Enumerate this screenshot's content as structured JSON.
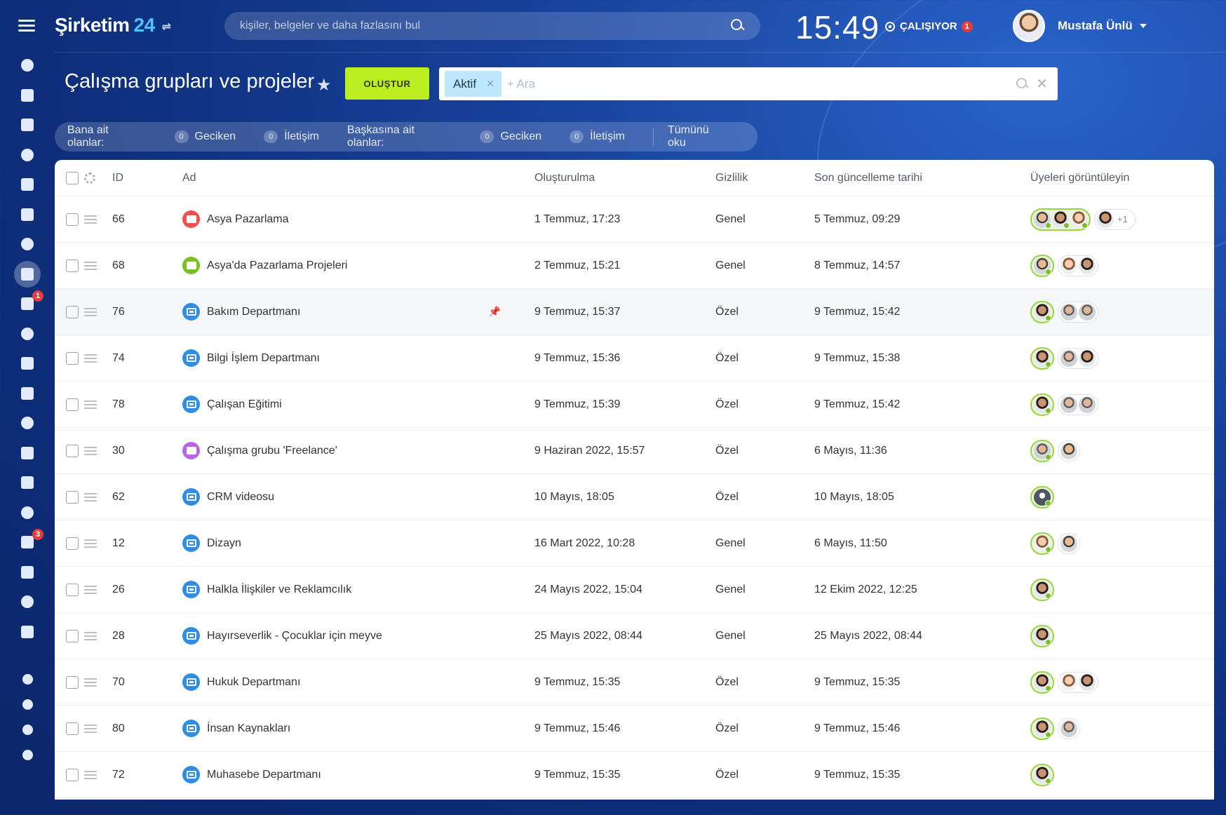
{
  "brand": {
    "name": "Şirketim",
    "number": "24"
  },
  "top_search": {
    "placeholder": "kişiler, belgeler ve daha fazlasını bul"
  },
  "clock": "15:49",
  "status": {
    "label": "ÇALIŞIYOR",
    "count": "1"
  },
  "user": {
    "name": "Mustafa Ünlü"
  },
  "sidebar": {
    "items": [
      {
        "icon": "feed-icon"
      },
      {
        "icon": "messenger-icon"
      },
      {
        "icon": "chat-icon"
      },
      {
        "icon": "calendar-icon"
      },
      {
        "icon": "document-icon"
      },
      {
        "icon": "drive-icon"
      },
      {
        "icon": "mail-icon"
      },
      {
        "icon": "groups-icon",
        "active": true
      },
      {
        "icon": "tasks-icon",
        "badge": "1"
      },
      {
        "icon": "crm-icon"
      },
      {
        "icon": "store-icon"
      },
      {
        "icon": "target-icon"
      },
      {
        "icon": "cart-icon"
      },
      {
        "icon": "forms-icon"
      },
      {
        "icon": "sign-icon"
      },
      {
        "icon": "analytics-icon"
      },
      {
        "icon": "contact-center-icon",
        "badge": "3"
      },
      {
        "icon": "robot-icon"
      },
      {
        "icon": "box-icon"
      },
      {
        "icon": "more-icon"
      }
    ],
    "bottom": [
      {
        "icon": "help-icon"
      },
      {
        "icon": "structure-icon"
      },
      {
        "icon": "settings-icon"
      },
      {
        "icon": "add-icon"
      }
    ]
  },
  "page": {
    "title": "Çalışma grupları ve projeler",
    "create_label": "OLUŞTUR",
    "filter_tag": "Aktif",
    "filter_add": "+ Ara"
  },
  "counters": {
    "mine_label": "Bana ait olanlar:",
    "mine": [
      {
        "count": "0",
        "label": "Geciken"
      },
      {
        "count": "0",
        "label": "İletişim"
      }
    ],
    "others_label": "Başkasına ait olanlar:",
    "others": [
      {
        "count": "0",
        "label": "Geciken"
      },
      {
        "count": "0",
        "label": "İletişim"
      }
    ],
    "read_all": "Tümünü oku"
  },
  "columns": {
    "id": "ID",
    "name": "Ad",
    "created": "Oluşturulma",
    "privacy": "Gizlilik",
    "updated": "Son güncelleme tarihi",
    "members": "Üyeleri görüntüleyin"
  },
  "rows": [
    {
      "id": "66",
      "name": "Asya Pazarlama",
      "icon": "red",
      "created": "1 Temmuz, 17:23",
      "privacy": "Genel",
      "updated": "5 Temmuz, 09:29",
      "owners": [
        "a1",
        "a2",
        "a3"
      ],
      "others": [
        "a2"
      ],
      "more": "+1"
    },
    {
      "id": "68",
      "name": "Asya'da Pazarlama Projeleri",
      "icon": "green",
      "created": "2 Temmuz, 15:21",
      "privacy": "Genel",
      "updated": "8 Temmuz, 14:57",
      "owners": [
        "a1"
      ],
      "others": [
        "a3",
        "a2"
      ]
    },
    {
      "id": "76",
      "name": "Bakım Departmanı",
      "icon": "blue",
      "created": "9 Temmuz, 15:37",
      "privacy": "Özel",
      "updated": "9 Temmuz, 15:42",
      "owners": [
        "a2"
      ],
      "others": [
        "a4",
        "a4"
      ],
      "pinned": true
    },
    {
      "id": "74",
      "name": "Bilgi İşlem Departmanı",
      "icon": "blue",
      "created": "9 Temmuz, 15:36",
      "privacy": "Özel",
      "updated": "9 Temmuz, 15:38",
      "owners": [
        "a2"
      ],
      "others": [
        "a4",
        "a2"
      ]
    },
    {
      "id": "78",
      "name": "Çalışan Eğitimi",
      "icon": "blue",
      "created": "9 Temmuz, 15:39",
      "privacy": "Özel",
      "updated": "9 Temmuz, 15:42",
      "owners": [
        "a2"
      ],
      "others": [
        "a4",
        "a4"
      ]
    },
    {
      "id": "30",
      "name": "Çalışma grubu 'Freelance'",
      "icon": "purple",
      "created": "9 Haziran 2022, 15:57",
      "privacy": "Özel",
      "updated": "6 Mayıs, 11:36",
      "owners": [
        "a4"
      ],
      "others": [
        "a1"
      ]
    },
    {
      "id": "62",
      "name": "CRM videosu",
      "icon": "blue",
      "created": "10 Mayıs, 18:05",
      "privacy": "Özel",
      "updated": "10 Mayıs, 18:05",
      "owners": [
        "a5"
      ],
      "others": []
    },
    {
      "id": "12",
      "name": "Dizayn",
      "icon": "blue",
      "created": "16 Mart 2022, 10:28",
      "privacy": "Genel",
      "updated": "6 Mayıs, 11:50",
      "owners": [
        "a3"
      ],
      "others": [
        "a1"
      ]
    },
    {
      "id": "26",
      "name": "Halkla İlişkiler ve Reklamcılık",
      "icon": "blue",
      "created": "24 Mayıs 2022, 15:04",
      "privacy": "Genel",
      "updated": "12 Ekim 2022, 12:25",
      "owners": [
        "a2"
      ],
      "others": []
    },
    {
      "id": "28",
      "name": "Hayırseverlik - Çocuklar için meyve",
      "icon": "blue",
      "created": "25 Mayıs 2022, 08:44",
      "privacy": "Genel",
      "updated": "25 Mayıs 2022, 08:44",
      "owners": [
        "a2"
      ],
      "others": []
    },
    {
      "id": "70",
      "name": "Hukuk Departmanı",
      "icon": "blue",
      "created": "9 Temmuz, 15:35",
      "privacy": "Özel",
      "updated": "9 Temmuz, 15:35",
      "owners": [
        "a2"
      ],
      "others": [
        "a3",
        "a2"
      ]
    },
    {
      "id": "80",
      "name": "İnsan Kaynakları",
      "icon": "blue",
      "created": "9 Temmuz, 15:46",
      "privacy": "Özel",
      "updated": "9 Temmuz, 15:46",
      "owners": [
        "a2"
      ],
      "others": [
        "a4"
      ]
    },
    {
      "id": "72",
      "name": "Muhasebe Departmanı",
      "icon": "blue",
      "created": "9 Temmuz, 15:35",
      "privacy": "Özel",
      "updated": "9 Temmuz, 15:35",
      "owners": [
        "a2"
      ],
      "others": []
    }
  ]
}
